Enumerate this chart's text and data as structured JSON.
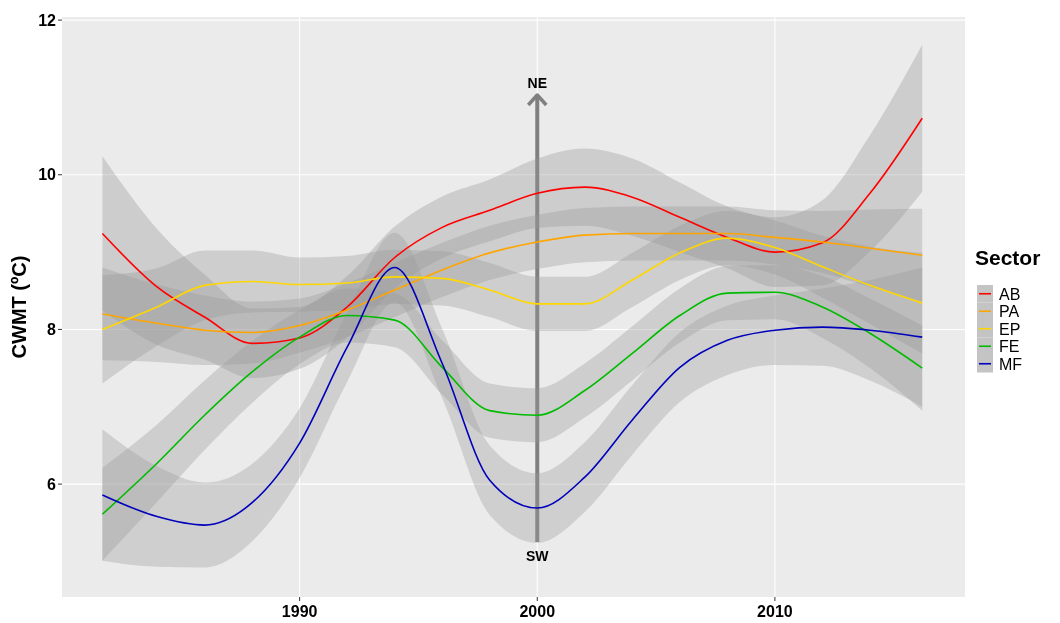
{
  "chart_data": {
    "type": "line",
    "ylabel": "CWMT (ºC)",
    "legend_title": "Sector",
    "legend": "right",
    "grid": true,
    "xlim": [
      1980,
      2018
    ],
    "xticks": [
      1990,
      2000,
      2010
    ],
    "ylim": [
      4.54,
      12.04
    ],
    "yticks": [
      6,
      8,
      10,
      12
    ],
    "x": [
      1981.7,
      1984,
      1986,
      1988,
      1990,
      1992,
      1994,
      1996,
      1998,
      2000,
      2002,
      2004,
      2006,
      2008,
      2010,
      2012,
      2014,
      2016.2
    ],
    "series": [
      {
        "name": "AB",
        "color": "#ff0000",
        "values": [
          9.24,
          8.55,
          8.16,
          7.82,
          7.89,
          8.29,
          8.93,
          9.32,
          9.54,
          9.76,
          9.84,
          9.71,
          9.45,
          9.19,
          9.0,
          9.12,
          9.76,
          10.73
        ],
        "upper": [
          10.24,
          9.3,
          8.71,
          8.27,
          8.29,
          8.69,
          9.33,
          9.72,
          9.94,
          10.21,
          10.34,
          10.21,
          9.9,
          9.59,
          9.45,
          9.67,
          10.51,
          11.68
        ],
        "lower": [
          8.24,
          7.8,
          7.61,
          7.37,
          7.49,
          7.89,
          8.53,
          8.92,
          9.14,
          9.31,
          9.34,
          9.21,
          9.0,
          8.79,
          8.55,
          8.57,
          9.01,
          9.78
        ]
      },
      {
        "name": "PA",
        "color": "#ffa500",
        "values": [
          8.2,
          8.08,
          7.99,
          7.96,
          8.05,
          8.25,
          8.51,
          8.77,
          8.99,
          9.13,
          9.22,
          9.24,
          9.24,
          9.24,
          9.19,
          9.13,
          9.05,
          8.96
        ],
        "upper": [
          8.8,
          8.58,
          8.44,
          8.36,
          8.4,
          8.6,
          8.86,
          9.12,
          9.34,
          9.48,
          9.57,
          9.59,
          9.59,
          9.59,
          9.54,
          9.53,
          9.55,
          9.56
        ],
        "lower": [
          7.6,
          7.58,
          7.54,
          7.56,
          7.7,
          7.9,
          8.16,
          8.42,
          8.64,
          8.78,
          8.87,
          8.89,
          8.89,
          8.89,
          8.84,
          8.73,
          8.55,
          8.36
        ]
      },
      {
        "name": "EP",
        "color": "#ffd700",
        "values": [
          8.0,
          8.29,
          8.57,
          8.62,
          8.58,
          8.6,
          8.68,
          8.66,
          8.51,
          8.33,
          8.33,
          8.64,
          8.99,
          9.18,
          9.06,
          8.81,
          8.57,
          8.34
        ],
        "upper": [
          8.7,
          8.79,
          9.02,
          9.02,
          8.93,
          8.95,
          9.03,
          9.01,
          8.86,
          8.68,
          8.68,
          8.99,
          9.34,
          9.53,
          9.41,
          9.21,
          9.07,
          8.99
        ],
        "lower": [
          7.3,
          7.79,
          8.12,
          8.22,
          8.23,
          8.25,
          8.33,
          8.31,
          8.16,
          7.98,
          7.98,
          8.29,
          8.64,
          8.83,
          8.71,
          8.41,
          8.07,
          7.69
        ]
      },
      {
        "name": "FE",
        "color": "#00bb00",
        "values": [
          5.61,
          6.27,
          6.89,
          7.45,
          7.9,
          8.18,
          8.12,
          7.51,
          6.95,
          6.89,
          7.21,
          7.69,
          8.18,
          8.47,
          8.48,
          8.29,
          7.95,
          7.5
        ],
        "upper": [
          6.21,
          6.77,
          7.34,
          7.85,
          8.25,
          8.53,
          8.47,
          7.86,
          7.3,
          7.24,
          7.56,
          8.04,
          8.53,
          8.82,
          8.83,
          8.69,
          8.4,
          8.05
        ],
        "lower": [
          5.01,
          5.77,
          6.44,
          7.05,
          7.55,
          7.83,
          7.77,
          7.16,
          6.6,
          6.54,
          6.86,
          7.34,
          7.83,
          8.12,
          8.13,
          7.89,
          7.5,
          6.95
        ]
      },
      {
        "name": "MF",
        "color": "#0000bb",
        "values": [
          5.86,
          5.58,
          5.47,
          5.76,
          6.53,
          7.77,
          8.8,
          7.56,
          6.05,
          5.69,
          6.09,
          6.83,
          7.51,
          7.86,
          7.99,
          8.03,
          7.99,
          7.9
        ],
        "upper": [
          6.71,
          6.23,
          6.02,
          6.26,
          6.98,
          8.22,
          9.25,
          8.01,
          6.5,
          6.14,
          6.54,
          7.28,
          7.96,
          8.31,
          8.44,
          8.53,
          8.64,
          8.8
        ],
        "lower": [
          5.01,
          4.93,
          4.92,
          5.26,
          6.08,
          7.32,
          8.35,
          7.11,
          5.6,
          5.24,
          5.64,
          6.38,
          7.06,
          7.41,
          7.54,
          7.53,
          7.34,
          7.0
        ]
      }
    ],
    "ref_lines": [
      {
        "axis": "x",
        "value": 2000,
        "color": "#808080"
      }
    ],
    "annotations": [
      "NE",
      "SW"
    ]
  }
}
